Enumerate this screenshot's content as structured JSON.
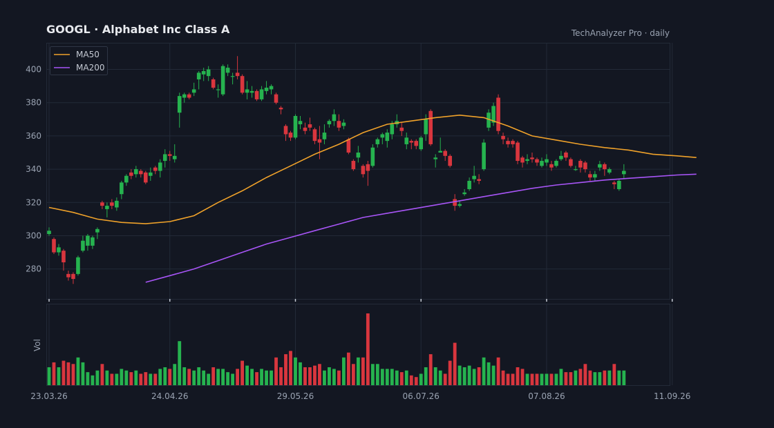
{
  "header": {
    "title": "GOOGL  ·  Alphabet Inc Class A",
    "source": "TechAnalyzer Pro · daily"
  },
  "colors": {
    "background": "#131722",
    "grid": "#232a38",
    "up": "#26b34f",
    "down": "#d9363e",
    "ma50": "#f0a22a",
    "ma200": "#a855f7"
  },
  "chart_data": {
    "type": "candlestick",
    "title": "GOOGL  ·  Alphabet Inc Class A",
    "subtitle": "TechAnalyzer Pro · daily",
    "ylim": [
      262,
      416
    ],
    "yticks": [
      280,
      300,
      320,
      340,
      360,
      380,
      400
    ],
    "grid": true,
    "legend": {
      "position": "top-left",
      "entries": [
        "MA50",
        "MA200"
      ]
    },
    "xticks": [
      {
        "index": 0,
        "label": "23.03.26"
      },
      {
        "index": 25,
        "label": "24.04.26"
      },
      {
        "index": 51,
        "label": "29.05.26"
      },
      {
        "index": 77,
        "label": "06.07.26"
      },
      {
        "index": 103,
        "label": "07.08.26"
      },
      {
        "index": 129,
        "label": "11.09.26"
      }
    ],
    "volume": {
      "ylabel": "Vol"
    },
    "candles": [
      [
        301,
        303,
        305,
        300,
        11
      ],
      [
        298,
        290,
        299,
        289,
        14
      ],
      [
        290,
        293,
        295,
        288,
        11
      ],
      [
        291,
        284,
        292,
        279,
        15
      ],
      [
        277,
        275,
        279,
        273,
        14
      ],
      [
        277,
        274,
        278,
        271,
        13
      ],
      [
        277,
        287,
        288,
        276,
        17
      ],
      [
        291,
        297,
        300,
        290,
        14
      ],
      [
        294,
        300,
        301,
        291,
        8
      ],
      [
        294,
        299,
        300,
        292,
        6
      ],
      [
        302,
        304,
        305,
        298,
        9
      ],
      [
        320,
        318,
        321,
        316,
        13
      ],
      [
        316,
        318,
        320,
        311,
        9
      ],
      [
        320,
        318,
        322,
        316,
        7
      ],
      [
        317,
        321,
        323,
        315,
        7
      ],
      [
        325,
        332,
        333,
        322,
        10
      ],
      [
        332,
        336,
        337,
        330,
        9
      ],
      [
        338,
        336,
        340,
        334,
        8
      ],
      [
        337,
        340,
        342,
        335,
        9
      ],
      [
        339,
        337,
        340,
        335,
        7
      ],
      [
        338,
        332,
        339,
        331,
        8
      ],
      [
        336,
        338,
        341,
        333,
        7
      ],
      [
        341,
        339,
        342,
        337,
        7
      ],
      [
        339,
        344,
        346,
        335,
        10
      ],
      [
        345,
        349,
        352,
        341,
        11
      ],
      [
        349,
        348,
        351,
        345,
        10
      ],
      [
        346,
        348,
        355,
        344,
        13
      ],
      [
        374,
        384,
        386,
        365,
        27
      ],
      [
        383,
        385,
        386,
        380,
        11
      ],
      [
        385,
        383,
        386,
        382,
        10
      ],
      [
        386,
        388,
        392,
        384,
        9
      ],
      [
        394,
        398,
        399,
        388,
        11
      ],
      [
        397,
        399,
        401,
        393,
        9
      ],
      [
        396,
        400,
        402,
        393,
        7
      ],
      [
        394,
        389,
        395,
        388,
        11
      ],
      [
        388,
        388,
        391,
        383,
        10
      ],
      [
        385,
        402,
        403,
        384,
        10
      ],
      [
        398,
        401,
        403,
        396,
        8
      ],
      [
        396,
        396,
        398,
        391,
        7
      ],
      [
        398,
        396,
        408,
        394,
        10
      ],
      [
        396,
        386,
        397,
        385,
        15
      ],
      [
        386,
        388,
        393,
        382,
        12
      ],
      [
        386,
        387,
        390,
        383,
        10
      ],
      [
        387,
        382,
        388,
        381,
        8
      ],
      [
        382,
        388,
        390,
        381,
        10
      ],
      [
        387,
        389,
        393,
        385,
        9
      ],
      [
        388,
        390,
        391,
        385,
        9
      ],
      [
        385,
        380,
        386,
        379,
        17
      ],
      [
        377,
        376,
        378,
        373,
        11
      ],
      [
        366,
        361,
        367,
        357,
        19
      ],
      [
        362,
        359,
        363,
        357,
        21
      ],
      [
        359,
        372,
        373,
        358,
        17
      ],
      [
        367,
        369,
        372,
        364,
        14
      ],
      [
        365,
        363,
        368,
        361,
        11
      ],
      [
        367,
        365,
        371,
        363,
        11
      ],
      [
        364,
        357,
        365,
        355,
        12
      ],
      [
        358,
        356,
        366,
        346,
        13
      ],
      [
        358,
        362,
        367,
        355,
        9
      ],
      [
        367,
        369,
        370,
        365,
        11
      ],
      [
        369,
        373,
        376,
        366,
        10
      ],
      [
        369,
        365,
        373,
        363,
        9
      ],
      [
        366,
        368,
        370,
        364,
        17
      ],
      [
        358,
        350,
        359,
        349,
        20
      ],
      [
        345,
        340,
        346,
        339,
        13
      ],
      [
        347,
        350,
        354,
        344,
        17
      ],
      [
        342,
        337,
        343,
        335,
        17
      ],
      [
        343,
        339,
        345,
        330,
        44
      ],
      [
        342,
        353,
        355,
        341,
        13
      ],
      [
        355,
        358,
        359,
        353,
        13
      ],
      [
        359,
        361,
        362,
        355,
        10
      ],
      [
        357,
        362,
        364,
        353,
        10
      ],
      [
        361,
        367,
        369,
        358,
        10
      ],
      [
        367,
        369,
        373,
        365,
        9
      ],
      [
        365,
        363,
        368,
        360,
        8
      ],
      [
        355,
        359,
        362,
        352,
        9
      ],
      [
        357,
        356,
        358,
        352,
        6
      ],
      [
        357,
        354,
        358,
        352,
        5
      ],
      [
        352,
        359,
        360,
        351,
        7
      ],
      [
        361,
        370,
        373,
        357,
        11
      ],
      [
        375,
        355,
        376,
        354,
        19
      ],
      [
        346,
        347,
        349,
        341,
        11
      ],
      [
        350,
        351,
        359,
        350,
        9
      ],
      [
        351,
        348,
        352,
        345,
        7
      ],
      [
        348,
        342,
        349,
        341,
        15
      ],
      [
        322,
        318,
        325,
        315,
        26
      ],
      [
        318,
        319,
        321,
        317,
        12
      ],
      [
        325,
        326,
        328,
        324,
        11
      ],
      [
        328,
        333,
        335,
        327,
        12
      ],
      [
        334,
        336,
        342,
        332,
        10
      ],
      [
        334,
        333,
        337,
        331,
        11
      ],
      [
        340,
        356,
        358,
        339,
        17
      ],
      [
        365,
        374,
        376,
        363,
        14
      ],
      [
        368,
        378,
        380,
        366,
        12
      ],
      [
        383,
        363,
        385,
        361,
        17
      ],
      [
        360,
        358,
        362,
        355,
        9
      ],
      [
        357,
        355,
        359,
        353,
        7
      ],
      [
        357,
        355,
        358,
        353,
        7
      ],
      [
        356,
        345,
        357,
        343,
        11
      ],
      [
        347,
        344,
        348,
        341,
        10
      ],
      [
        345,
        346,
        349,
        343,
        7
      ],
      [
        347,
        346,
        350,
        344,
        7
      ],
      [
        346,
        344,
        347,
        342,
        7
      ],
      [
        342,
        345,
        347,
        341,
        7
      ],
      [
        344,
        346,
        349,
        342,
        7
      ],
      [
        343,
        341,
        345,
        339,
        7
      ],
      [
        342,
        345,
        346,
        341,
        7
      ],
      [
        346,
        348,
        351,
        345,
        10
      ],
      [
        350,
        347,
        351,
        345,
        8
      ],
      [
        346,
        342,
        347,
        341,
        8
      ],
      [
        340,
        340,
        342,
        339,
        9
      ],
      [
        345,
        341,
        346,
        338,
        10
      ],
      [
        344,
        340,
        345,
        338,
        13
      ],
      [
        337,
        335,
        339,
        333,
        9
      ],
      [
        335,
        337,
        339,
        333,
        8
      ],
      [
        341,
        343,
        345,
        339,
        8
      ],
      [
        343,
        340,
        344,
        336,
        9
      ],
      [
        338,
        340,
        341,
        337,
        9
      ],
      [
        332,
        331,
        333,
        328,
        13
      ],
      [
        328,
        333,
        334,
        327,
        9
      ],
      [
        337,
        339,
        343,
        334,
        9
      ]
    ],
    "ma50": [
      [
        0,
        317
      ],
      [
        5,
        314
      ],
      [
        10,
        310
      ],
      [
        15,
        308
      ],
      [
        20,
        307.2
      ],
      [
        25,
        308.5
      ],
      [
        30,
        312
      ],
      [
        35,
        320
      ],
      [
        40,
        327
      ],
      [
        45,
        335
      ],
      [
        50,
        342
      ],
      [
        55,
        349
      ],
      [
        60,
        355
      ],
      [
        65,
        362
      ],
      [
        70,
        367
      ],
      [
        75,
        369
      ],
      [
        80,
        371
      ],
      [
        85,
        372.5
      ],
      [
        90,
        371
      ],
      [
        95,
        366
      ],
      [
        100,
        360
      ],
      [
        105,
        357.5
      ],
      [
        110,
        355
      ],
      [
        115,
        353
      ],
      [
        120,
        351.5
      ],
      [
        125,
        349
      ],
      [
        130,
        348
      ],
      [
        134,
        347
      ]
    ],
    "ma200": [
      [
        20,
        272
      ],
      [
        25,
        276
      ],
      [
        30,
        280
      ],
      [
        35,
        285
      ],
      [
        40,
        290
      ],
      [
        45,
        295
      ],
      [
        50,
        299
      ],
      [
        55,
        303
      ],
      [
        60,
        307
      ],
      [
        65,
        311
      ],
      [
        70,
        313.5
      ],
      [
        75,
        316
      ],
      [
        80,
        318.5
      ],
      [
        85,
        321
      ],
      [
        90,
        323.5
      ],
      [
        95,
        326
      ],
      [
        100,
        328.5
      ],
      [
        105,
        330.5
      ],
      [
        110,
        332
      ],
      [
        115,
        333.5
      ],
      [
        120,
        334.5
      ],
      [
        125,
        335.5
      ],
      [
        130,
        336.5
      ],
      [
        134,
        337
      ]
    ]
  }
}
